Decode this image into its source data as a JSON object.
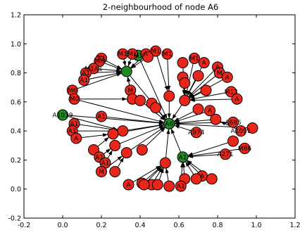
{
  "chart_data": {
    "type": "scatter",
    "title": "2-neighbourhood of node A6",
    "xlabel": "",
    "ylabel": "",
    "xlim": [
      -0.2,
      1.2
    ],
    "ylim": [
      -0.2,
      1.2
    ],
    "x_ticks": [
      "-0.2",
      "0.0",
      "0.2",
      "0.4",
      "0.6",
      "0.8",
      "1.0",
      "1.2"
    ],
    "y_ticks": [
      "-0.2",
      "0.0",
      "0.2",
      "0.4",
      "0.6",
      "0.8",
      "1.0",
      "1.2"
    ],
    "node_colors": {
      "red": "#e8261b",
      "green": "#1f8a22"
    },
    "nodes": [
      {
        "id": "n1",
        "label": "A6",
        "x": 0.55,
        "y": 0.45,
        "color": "green"
      },
      {
        "id": "n2",
        "label": "",
        "x": 0.33,
        "y": 0.81,
        "color": "green"
      },
      {
        "id": "n3",
        "label": "A1019",
        "x": 0.0,
        "y": 0.51,
        "color": "green"
      },
      {
        "id": "n4",
        "label": "A1",
        "x": 0.62,
        "y": 0.22,
        "color": "green"
      },
      {
        "id": "n5",
        "label": "M1",
        "x": 0.39,
        "y": 0.92,
        "color": "green"
      },
      {
        "id": "n6",
        "label": "A1",
        "x": 0.2,
        "y": 0.9,
        "color": "red"
      },
      {
        "id": "n7",
        "label": "M6",
        "x": 0.19,
        "y": 0.88,
        "color": "red"
      },
      {
        "id": "n8",
        "label": "M1A1",
        "x": 0.16,
        "y": 0.83,
        "color": "red"
      },
      {
        "id": "n9",
        "label": "A1",
        "x": 0.12,
        "y": 0.8,
        "color": "red"
      },
      {
        "id": "n10",
        "label": "A1",
        "x": 0.11,
        "y": 0.75,
        "color": "red"
      },
      {
        "id": "n11",
        "label": "M6",
        "x": 0.05,
        "y": 0.68,
        "color": "red"
      },
      {
        "id": "n12",
        "label": "M1",
        "x": 0.31,
        "y": 0.93,
        "color": "red"
      },
      {
        "id": "n13",
        "label": "M1",
        "x": 0.36,
        "y": 0.93,
        "color": "red"
      },
      {
        "id": "n14",
        "label": "A",
        "x": 0.43,
        "y": 0.93,
        "color": "red"
      },
      {
        "id": "n15",
        "label": "M1",
        "x": 0.48,
        "y": 0.95,
        "color": "red"
      },
      {
        "id": "n16",
        "label": "",
        "x": 0.44,
        "y": 0.91,
        "color": "red"
      },
      {
        "id": "n17",
        "label": "M1",
        "x": 0.54,
        "y": 0.93,
        "color": "red"
      },
      {
        "id": "n18",
        "label": "M1",
        "x": 0.68,
        "y": 0.9,
        "color": "red"
      },
      {
        "id": "n19",
        "label": "",
        "x": 0.62,
        "y": 0.87,
        "color": "red"
      },
      {
        "id": "n20",
        "label": "A",
        "x": 0.73,
        "y": 0.87,
        "color": "red"
      },
      {
        "id": "n21",
        "label": "A",
        "x": 0.8,
        "y": 0.84,
        "color": "red"
      },
      {
        "id": "n22",
        "label": "M",
        "x": 0.81,
        "y": 0.8,
        "color": "red"
      },
      {
        "id": "n23",
        "label": "",
        "x": 0.7,
        "y": 0.78,
        "color": "red"
      },
      {
        "id": "n24",
        "label": "",
        "x": 0.62,
        "y": 0.77,
        "color": "red"
      },
      {
        "id": "n25",
        "label": "A",
        "x": 0.85,
        "y": 0.77,
        "color": "red"
      },
      {
        "id": "n26",
        "label": "",
        "x": 0.63,
        "y": 0.73,
        "color": "red"
      },
      {
        "id": "n27",
        "label": "",
        "x": 0.74,
        "y": 0.68,
        "color": "red"
      },
      {
        "id": "n28",
        "label": "M13",
        "x": 0.87,
        "y": 0.67,
        "color": "red"
      },
      {
        "id": "n29",
        "label": "A",
        "x": 0.9,
        "y": 0.62,
        "color": "red"
      },
      {
        "id": "n30",
        "label": "",
        "x": 0.55,
        "y": 0.64,
        "color": "red"
      },
      {
        "id": "n31",
        "label": "",
        "x": 0.63,
        "y": 0.61,
        "color": "red"
      },
      {
        "id": "n32",
        "label": "M",
        "x": 0.35,
        "y": 0.68,
        "color": "red"
      },
      {
        "id": "n33",
        "label": "",
        "x": 0.36,
        "y": 0.62,
        "color": "red"
      },
      {
        "id": "n34",
        "label": "M0",
        "x": 0.06,
        "y": 0.62,
        "color": "red"
      },
      {
        "id": "n35",
        "label": "",
        "x": 0.4,
        "y": 0.61,
        "color": "red"
      },
      {
        "id": "n36",
        "label": "",
        "x": 0.46,
        "y": 0.59,
        "color": "red"
      },
      {
        "id": "n37",
        "label": "",
        "x": 0.48,
        "y": 0.56,
        "color": "red"
      },
      {
        "id": "n38",
        "label": "A1",
        "x": 0.2,
        "y": 0.5,
        "color": "red"
      },
      {
        "id": "n39",
        "label": "A",
        "x": 0.76,
        "y": 0.54,
        "color": "red"
      },
      {
        "id": "n40",
        "label": "",
        "x": 0.7,
        "y": 0.55,
        "color": "red"
      },
      {
        "id": "n41",
        "label": "A685",
        "x": 0.88,
        "y": 0.46,
        "color": "red"
      },
      {
        "id": "n42",
        "label": "A1091",
        "x": 0.92,
        "y": 0.4,
        "color": "red"
      },
      {
        "id": "n43",
        "label": "",
        "x": 0.98,
        "y": 0.42,
        "color": "red"
      },
      {
        "id": "n44",
        "label": "",
        "x": 0.79,
        "y": 0.48,
        "color": "red"
      },
      {
        "id": "n45",
        "label": "A974",
        "x": 0.69,
        "y": 0.39,
        "color": "red"
      },
      {
        "id": "n46",
        "label": "",
        "x": 0.88,
        "y": 0.33,
        "color": "red"
      },
      {
        "id": "n47",
        "label": "M86",
        "x": 0.94,
        "y": 0.28,
        "color": "red"
      },
      {
        "id": "n48",
        "label": "A271",
        "x": 0.84,
        "y": 0.24,
        "color": "red"
      },
      {
        "id": "n49",
        "label": "A1",
        "x": 0.06,
        "y": 0.45,
        "color": "red"
      },
      {
        "id": "n50",
        "label": "A1",
        "x": 0.05,
        "y": 0.4,
        "color": "red"
      },
      {
        "id": "n51",
        "label": "",
        "x": 0.31,
        "y": 0.4,
        "color": "red"
      },
      {
        "id": "n52",
        "label": "",
        "x": 0.26,
        "y": 0.38,
        "color": "red"
      },
      {
        "id": "n53",
        "label": "A",
        "x": 0.07,
        "y": 0.35,
        "color": "red"
      },
      {
        "id": "n54",
        "label": "",
        "x": 0.27,
        "y": 0.3,
        "color": "red"
      },
      {
        "id": "n55",
        "label": "",
        "x": 0.16,
        "y": 0.27,
        "color": "red"
      },
      {
        "id": "n56",
        "label": "",
        "x": 0.41,
        "y": 0.27,
        "color": "red"
      },
      {
        "id": "n57",
        "label": "",
        "x": 0.33,
        "y": 0.25,
        "color": "red"
      },
      {
        "id": "n58",
        "label": "A1",
        "x": 0.19,
        "y": 0.22,
        "color": "red"
      },
      {
        "id": "n59",
        "label": "A1",
        "x": 0.22,
        "y": 0.18,
        "color": "red"
      },
      {
        "id": "n60",
        "label": "",
        "x": 0.27,
        "y": 0.12,
        "color": "red"
      },
      {
        "id": "n61",
        "label": "M",
        "x": 0.2,
        "y": 0.12,
        "color": "red"
      },
      {
        "id": "n62",
        "label": "",
        "x": 0.53,
        "y": 0.18,
        "color": "red"
      },
      {
        "id": "n63",
        "label": "",
        "x": 0.63,
        "y": 0.07,
        "color": "red"
      },
      {
        "id": "n64",
        "label": "A",
        "x": 0.72,
        "y": 0.09,
        "color": "red"
      },
      {
        "id": "n65",
        "label": "",
        "x": 0.77,
        "y": 0.07,
        "color": "red"
      },
      {
        "id": "n66",
        "label": "",
        "x": 0.69,
        "y": 0.07,
        "color": "red"
      },
      {
        "id": "n67",
        "label": "A",
        "x": 0.34,
        "y": 0.03,
        "color": "red"
      },
      {
        "id": "n68",
        "label": "",
        "x": 0.41,
        "y": 0.04,
        "color": "red"
      },
      {
        "id": "n69",
        "label": "",
        "x": 0.46,
        "y": 0.03,
        "color": "red"
      },
      {
        "id": "n70",
        "label": "",
        "x": 0.49,
        "y": 0.03,
        "color": "red"
      },
      {
        "id": "n71",
        "label": "",
        "x": 0.55,
        "y": 0.02,
        "color": "red"
      },
      {
        "id": "n72",
        "label": "A1",
        "x": 0.61,
        "y": 0.02,
        "color": "red"
      },
      {
        "id": "n73",
        "label": "",
        "x": 0.42,
        "y": 0.03,
        "color": "red"
      }
    ],
    "edges": [
      [
        "n2",
        "n1"
      ],
      [
        "n3",
        "n1"
      ],
      [
        "n4",
        "n1"
      ],
      [
        "n5",
        "n1"
      ],
      [
        "n6",
        "n2"
      ],
      [
        "n7",
        "n2"
      ],
      [
        "n8",
        "n2"
      ],
      [
        "n9",
        "n2"
      ],
      [
        "n10",
        "n2"
      ],
      [
        "n11",
        "n2"
      ],
      [
        "n12",
        "n2"
      ],
      [
        "n13",
        "n2"
      ],
      [
        "n14",
        "n2"
      ],
      [
        "n16",
        "n2"
      ],
      [
        "n32",
        "n2"
      ],
      [
        "n33",
        "n2"
      ],
      [
        "n15",
        "n30"
      ],
      [
        "n17",
        "n30"
      ],
      [
        "n18",
        "n31"
      ],
      [
        "n19",
        "n31"
      ],
      [
        "n20",
        "n31"
      ],
      [
        "n21",
        "n31"
      ],
      [
        "n22",
        "n31"
      ],
      [
        "n23",
        "n31"
      ],
      [
        "n24",
        "n31"
      ],
      [
        "n25",
        "n31"
      ],
      [
        "n26",
        "n31"
      ],
      [
        "n27",
        "n31"
      ],
      [
        "n28",
        "n31"
      ],
      [
        "n29",
        "n31"
      ],
      [
        "n30",
        "n1"
      ],
      [
        "n31",
        "n1"
      ],
      [
        "n34",
        "n1"
      ],
      [
        "n35",
        "n1"
      ],
      [
        "n36",
        "n1"
      ],
      [
        "n37",
        "n1"
      ],
      [
        "n38",
        "n1"
      ],
      [
        "n39",
        "n1"
      ],
      [
        "n40",
        "n1"
      ],
      [
        "n41",
        "n1"
      ],
      [
        "n43",
        "n1"
      ],
      [
        "n44",
        "n1"
      ],
      [
        "n45",
        "n1"
      ],
      [
        "n46",
        "n4"
      ],
      [
        "n47",
        "n4"
      ],
      [
        "n48",
        "n4"
      ],
      [
        "n42",
        "n44"
      ],
      [
        "n49",
        "n51"
      ],
      [
        "n50",
        "n51"
      ],
      [
        "n53",
        "n52"
      ],
      [
        "n51",
        "n1"
      ],
      [
        "n52",
        "n1"
      ],
      [
        "n54",
        "n1"
      ],
      [
        "n55",
        "n52"
      ],
      [
        "n56",
        "n1"
      ],
      [
        "n57",
        "n1"
      ],
      [
        "n58",
        "n54"
      ],
      [
        "n59",
        "n54"
      ],
      [
        "n60",
        "n57"
      ],
      [
        "n61",
        "n57"
      ],
      [
        "n62",
        "n1"
      ],
      [
        "n63",
        "n4"
      ],
      [
        "n64",
        "n4"
      ],
      [
        "n65",
        "n4"
      ],
      [
        "n66",
        "n4"
      ],
      [
        "n67",
        "n62"
      ],
      [
        "n68",
        "n62"
      ],
      [
        "n69",
        "n62"
      ],
      [
        "n70",
        "n62"
      ],
      [
        "n71",
        "n62"
      ],
      [
        "n72",
        "n4"
      ],
      [
        "n73",
        "n62"
      ],
      [
        "n3",
        "n51"
      ],
      [
        "n34",
        "n33"
      ]
    ]
  }
}
